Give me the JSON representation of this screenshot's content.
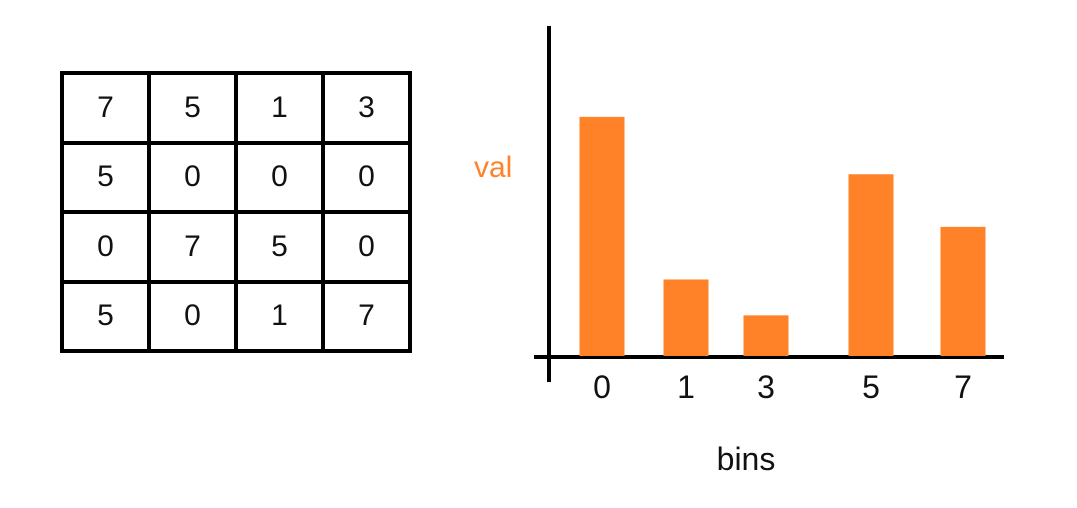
{
  "matrix": {
    "rows": [
      [
        "7",
        "5",
        "1",
        "3"
      ],
      [
        "5",
        "0",
        "0",
        "0"
      ],
      [
        "0",
        "7",
        "5",
        "0"
      ],
      [
        "5",
        "0",
        "1",
        "7"
      ]
    ]
  },
  "chart_data": {
    "type": "bar",
    "categories": [
      "0",
      "1",
      "3",
      "5",
      "7"
    ],
    "values": [
      5,
      1.6,
      0.85,
      3.8,
      2.7
    ],
    "xlabel": "bins",
    "ylabel": "val",
    "ylim": [
      0,
      6.9
    ],
    "grid": false,
    "colors": {
      "bar": "#FF8229",
      "ylabel": "#FF8229",
      "axis": "#000000"
    }
  }
}
